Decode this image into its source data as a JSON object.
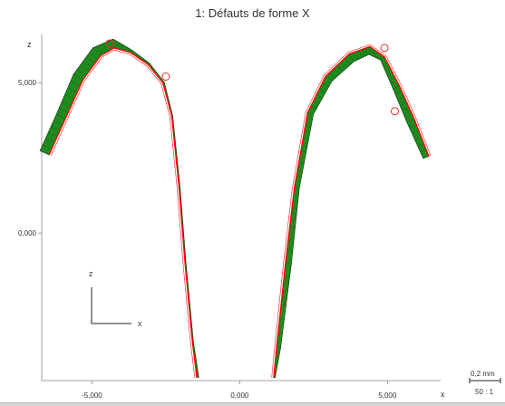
{
  "chart_data": {
    "type": "line",
    "title": "1: Défauts de forme X",
    "xlabel": "x",
    "ylabel": "z",
    "x_ticks": [
      "-5,000",
      "0,000",
      "5,000"
    ],
    "z_ticks": [
      "5,000",
      "0,000"
    ],
    "xlim": [
      -6.7,
      6.8
    ],
    "zlim": [
      -4.9,
      6.6
    ],
    "grid": false,
    "scale_label": "0,2 mm",
    "magnification": "50 : 1",
    "axis_indicator": {
      "vertical": "z",
      "horizontal": "x"
    },
    "series": [
      {
        "profile": "left",
        "nominal": [
          [
            -6.45,
            2.6
          ],
          [
            -5.9,
            3.8
          ],
          [
            -5.3,
            5.1
          ],
          [
            -4.7,
            5.9
          ],
          [
            -4.25,
            6.15
          ],
          [
            -3.7,
            6.0
          ],
          [
            -3.1,
            5.6
          ],
          [
            -2.6,
            5.0
          ],
          [
            -2.3,
            3.9
          ],
          [
            -2.05,
            1.5
          ],
          [
            -1.85,
            -1.0
          ],
          [
            -1.6,
            -3.6
          ],
          [
            -1.45,
            -4.8
          ]
        ],
        "deviation_factor": [
          1.0,
          1.0,
          1.1,
          1.1,
          0.9,
          0.3,
          0.2,
          0.15,
          0.1,
          0.1,
          0.1,
          0.1,
          0.2
        ]
      },
      {
        "profile": "right",
        "nominal": [
          [
            1.15,
            -4.8
          ],
          [
            1.25,
            -3.8
          ],
          [
            1.55,
            -1.0
          ],
          [
            1.85,
            1.5
          ],
          [
            2.3,
            4.0
          ],
          [
            2.9,
            5.2
          ],
          [
            3.7,
            5.95
          ],
          [
            4.4,
            6.2
          ],
          [
            4.9,
            5.85
          ],
          [
            5.4,
            4.9
          ],
          [
            5.9,
            3.8
          ],
          [
            6.4,
            2.55
          ]
        ],
        "deviation_factor": [
          0.15,
          0.4,
          0.6,
          0.5,
          0.6,
          0.8,
          0.9,
          0.8,
          0.5,
          0.7,
          0.8,
          0.6
        ]
      }
    ],
    "measure_points": [
      {
        "x": -4.4,
        "z": 6.3
      },
      {
        "x": -2.5,
        "z": 5.2
      },
      {
        "x": 4.9,
        "z": 6.15
      },
      {
        "x": 5.25,
        "z": 4.05
      }
    ],
    "colors": {
      "nominal": "#ff0000",
      "deviation": "#1f8a1f",
      "deviation_edge": "#0a3d0a",
      "point": "#e03030"
    }
  }
}
